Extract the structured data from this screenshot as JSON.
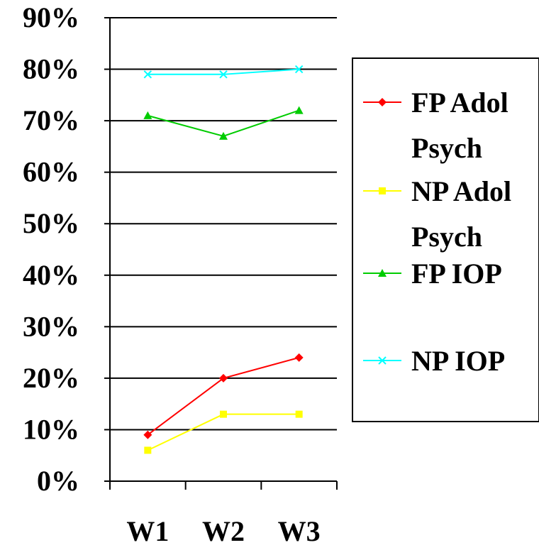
{
  "chart_data": {
    "type": "line",
    "categories": [
      "W1",
      "W2",
      "W3"
    ],
    "ylim": [
      0,
      0.9
    ],
    "yticks": [
      {
        "value": 0.0,
        "label": "0%"
      },
      {
        "value": 0.1,
        "label": "10%"
      },
      {
        "value": 0.2,
        "label": "20%"
      },
      {
        "value": 0.3,
        "label": "30%"
      },
      {
        "value": 0.4,
        "label": "40%"
      },
      {
        "value": 0.5,
        "label": "50%"
      },
      {
        "value": 0.6,
        "label": "60%"
      },
      {
        "value": 0.7,
        "label": "70%"
      },
      {
        "value": 0.8,
        "label": "80%"
      },
      {
        "value": 0.9,
        "label": "90%"
      }
    ],
    "grid": true,
    "legend_position": "right",
    "series": [
      {
        "name": "FP Adol Psych",
        "legend_lines": [
          "FP Adol",
          "Psych"
        ],
        "marker": "diamond",
        "color": "#ff0000",
        "values": [
          0.09,
          0.2,
          0.24
        ]
      },
      {
        "name": "NP Adol Psych",
        "legend_lines": [
          "NP Adol",
          "Psych"
        ],
        "marker": "square",
        "color": "#ffff00",
        "values": [
          0.06,
          0.13,
          0.13
        ]
      },
      {
        "name": "FP IOP",
        "legend_lines": [
          "FP IOP"
        ],
        "marker": "triangle",
        "color": "#00cc00",
        "values": [
          0.71,
          0.67,
          0.72
        ]
      },
      {
        "name": "NP IOP",
        "legend_lines": [
          "NP IOP"
        ],
        "marker": "x",
        "color": "#00ffff",
        "values": [
          0.79,
          0.79,
          0.8
        ]
      }
    ]
  }
}
